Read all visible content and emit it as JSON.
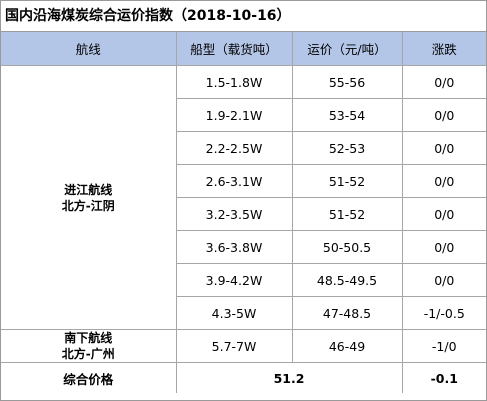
{
  "title": "国内沿海煤炭综合运价指数（2018-10-16）",
  "header": [
    "航线",
    "船型（载货吨）",
    "运价（元/吨）",
    "涨跌"
  ],
  "groups": [
    {
      "route": [
        "进江航线",
        "北方-江阴"
      ],
      "rows": [
        [
          "1.5-1.8W",
          "55-56",
          "0/0"
        ],
        [
          "1.9-2.1W",
          "53-54",
          "0/0"
        ],
        [
          "2.2-2.5W",
          "52-53",
          "0/0"
        ],
        [
          "2.6-3.1W",
          "51-52",
          "0/0"
        ],
        [
          "3.2-3.5W",
          "51-52",
          "0/0"
        ],
        [
          "3.6-3.8W",
          "50-50.5",
          "0/0"
        ],
        [
          "3.9-4.2W",
          "48.5-49.5",
          "0/0"
        ],
        [
          "4.3-5W",
          "47-48.5",
          "-1/-0.5"
        ]
      ]
    },
    {
      "route": [
        "南下航线",
        "北方-广州"
      ],
      "rows": [
        [
          "5.7-7W",
          "46-49",
          "-1/0"
        ]
      ]
    }
  ],
  "footer": {
    "label": "综合价格",
    "index": "51.2",
    "change": "-0.1"
  }
}
